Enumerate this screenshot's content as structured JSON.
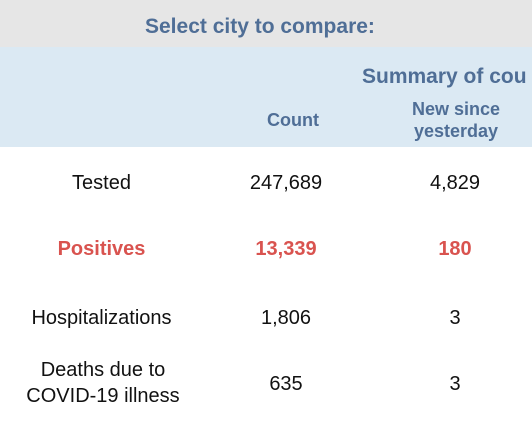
{
  "header": {
    "select_title": "Select city to compare:",
    "summary_title": "Summary of cou"
  },
  "columns": {
    "count": "Count",
    "new_since": "New since yesterday"
  },
  "rows": [
    {
      "label": "Tested",
      "count": "247,689",
      "new": "4,829"
    },
    {
      "label": "Positives",
      "count": "13,339",
      "new": "180"
    },
    {
      "label": "Hospitalizations",
      "count": "1,806",
      "new": "3"
    },
    {
      "label": "Deaths due to COVID-19 illness",
      "count": "635",
      "new": "3"
    }
  ],
  "colors": {
    "header_text": "#4f6e96",
    "select_bg": "#e6e6e6",
    "summary_bg": "#dbe9f3",
    "positives": "#d9534f"
  }
}
